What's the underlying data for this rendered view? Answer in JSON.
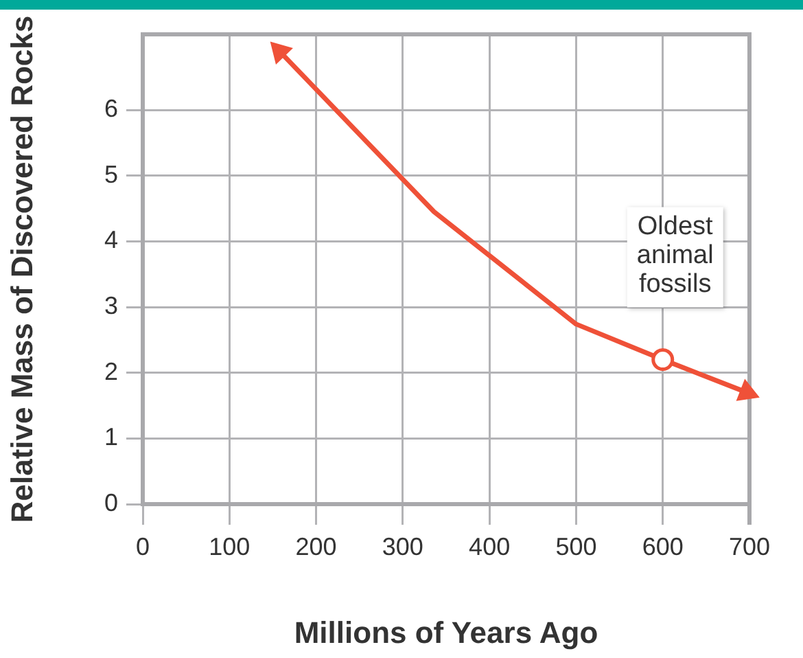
{
  "chart_data": {
    "type": "line",
    "xlabel": "Millions of Years Ago",
    "ylabel": "Relative Mass of Discovered Rocks",
    "x": [
      158,
      336,
      500,
      600,
      697
    ],
    "series": [
      {
        "color": "#ef5138",
        "values": [
          6.89,
          4.45,
          2.74,
          2.2,
          1.7
        ]
      }
    ],
    "xlim": [
      0,
      700
    ],
    "xticks": [
      0,
      100,
      200,
      300,
      400,
      500,
      600,
      700
    ],
    "ylim": [
      0,
      7.15
    ],
    "yticks": [
      0,
      1,
      2,
      3,
      4,
      5,
      6
    ],
    "grid": true,
    "legend": false,
    "line_style": "solid",
    "annotations": [
      {
        "text": "Oldest animal fossils",
        "x": 600,
        "y": 2.2
      }
    ]
  }
}
